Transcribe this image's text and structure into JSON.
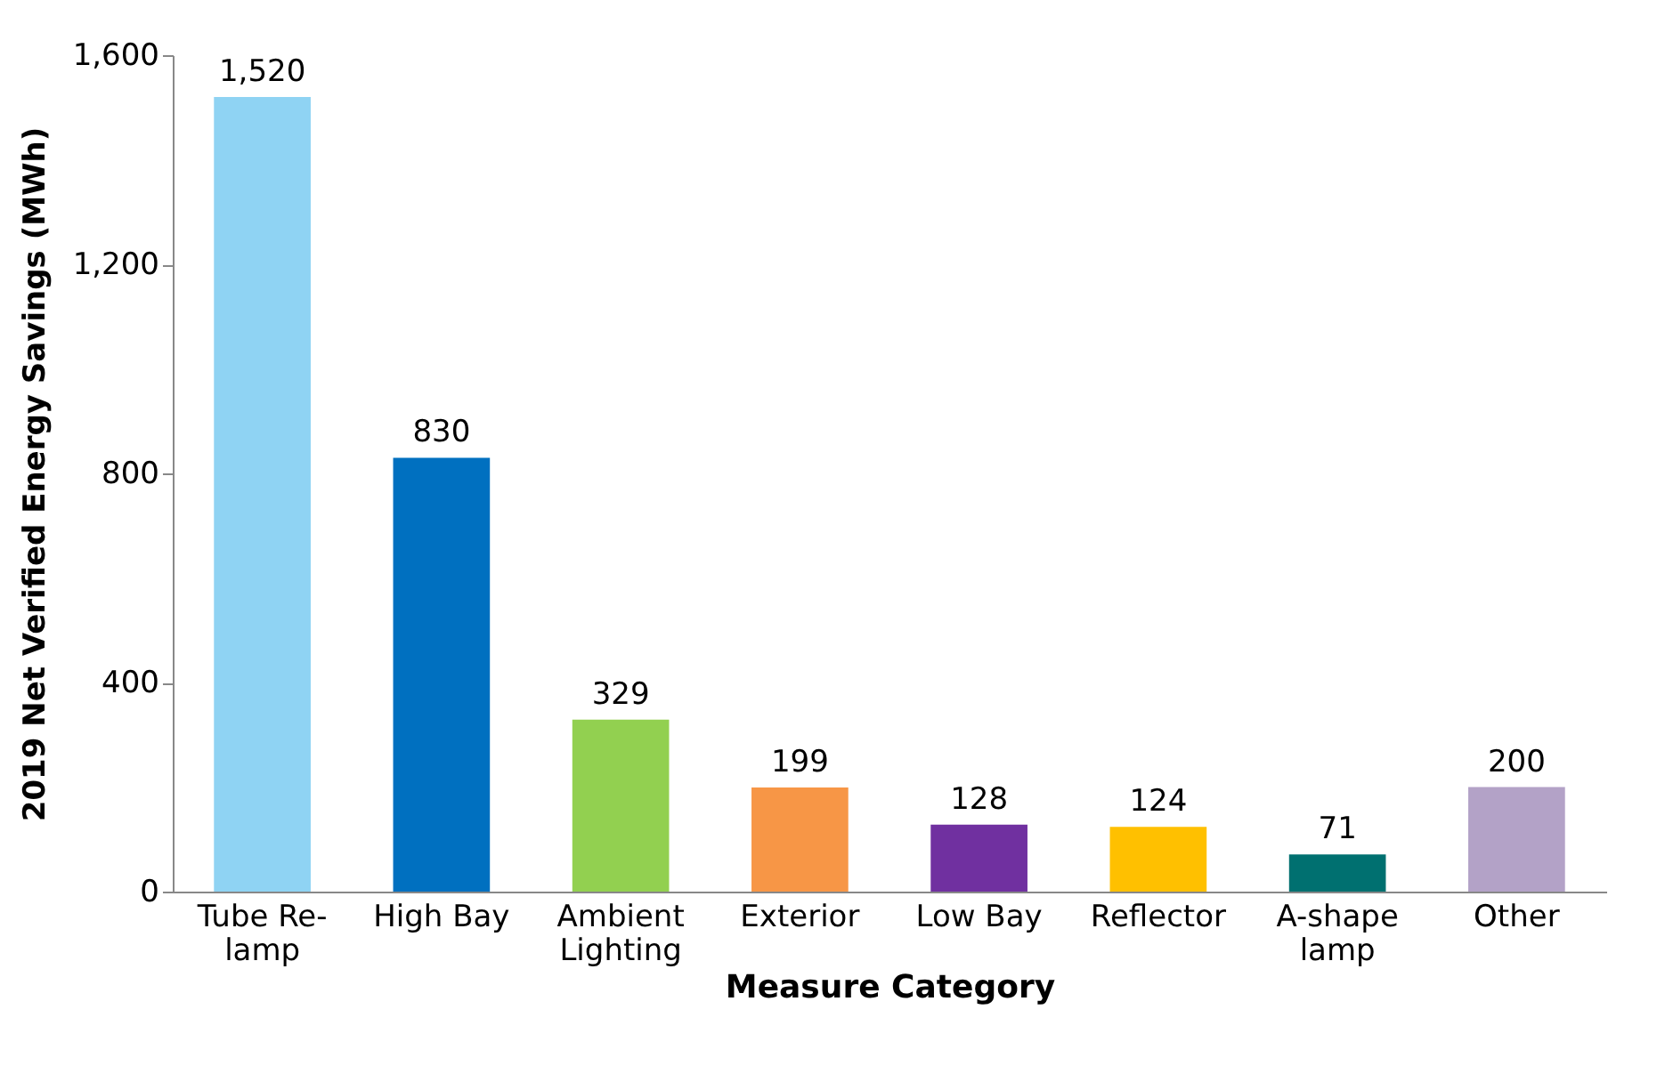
{
  "chart_data": {
    "type": "bar",
    "xlabel": "Measure Category",
    "ylabel": "2019 Net Verified Energy Savings (MWh)",
    "categories": [
      "Tube Re-lamp",
      "High Bay",
      "Ambient Lighting",
      "Exterior",
      "Low Bay",
      "Reflector",
      "A-shape lamp",
      "Other"
    ],
    "values": [
      1520,
      830,
      329,
      199,
      128,
      124,
      71,
      200
    ],
    "colors": [
      "#8fd3f3",
      "#0070c0",
      "#92d050",
      "#f79646",
      "#7030a0",
      "#ffc000",
      "#007070",
      "#b3a2c7"
    ],
    "value_labels": [
      "1,520",
      "830",
      "329",
      "199",
      "128",
      "124",
      "71",
      "200"
    ],
    "ylim": [
      0,
      1600
    ],
    "yticks": [
      0,
      {
        "value": 400,
        "label": "400"
      },
      {
        "value": 800,
        "label": "800"
      },
      {
        "value": 1200,
        "label": "1,200"
      },
      {
        "value": 1600,
        "label": "1,600"
      }
    ],
    "grid": false
  }
}
